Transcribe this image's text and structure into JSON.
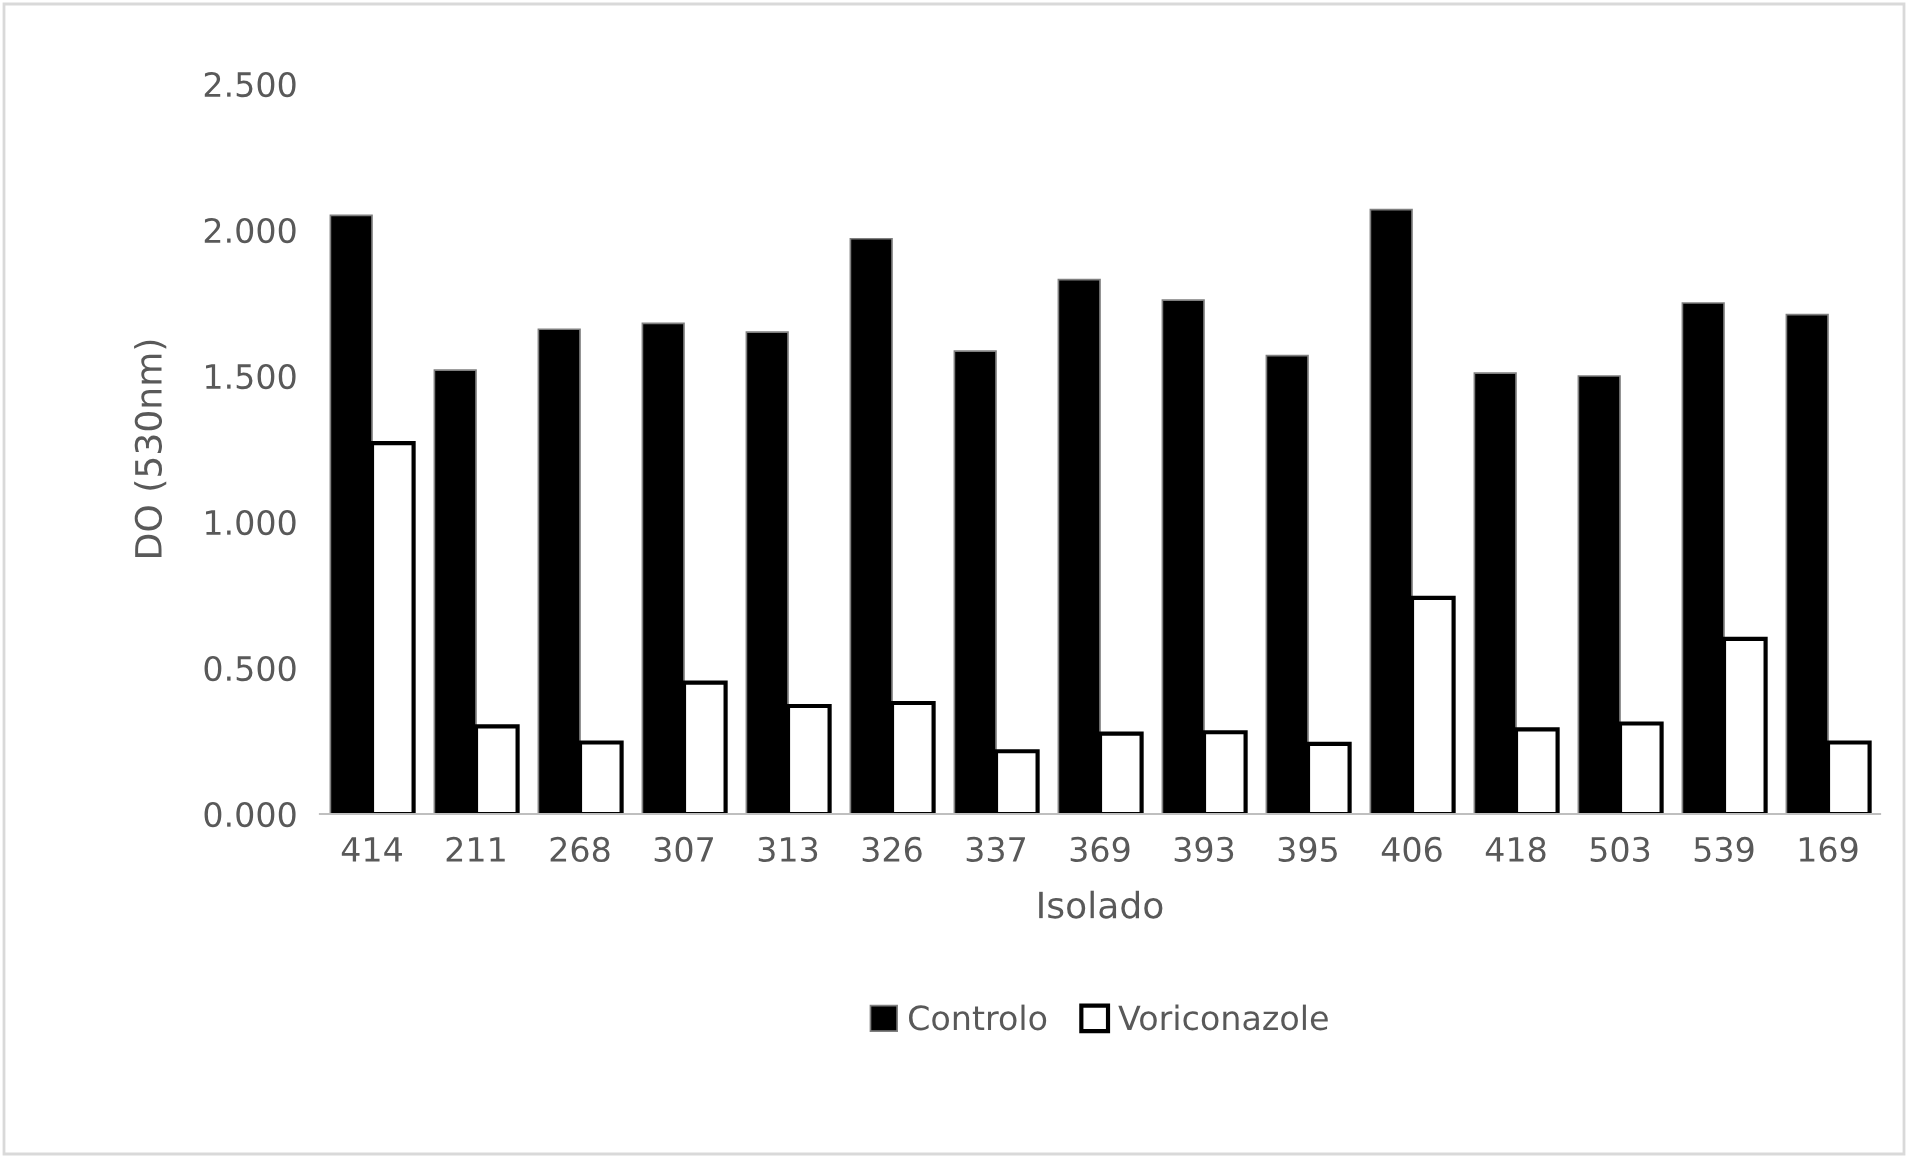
{
  "chart_data": {
    "type": "bar",
    "xlabel": "Isolado",
    "ylabel": "DO (530nm)",
    "categories": [
      "414",
      "211",
      "268",
      "307",
      "313",
      "326",
      "337",
      "369",
      "393",
      "395",
      "406",
      "418",
      "503",
      "539",
      "169"
    ],
    "series": [
      {
        "name": "Controlo",
        "color": "#000000",
        "values": [
          2.05,
          1.52,
          1.66,
          1.68,
          1.65,
          1.97,
          1.585,
          1.83,
          1.76,
          1.57,
          2.07,
          1.51,
          1.5,
          1.75,
          1.71
        ]
      },
      {
        "name": "Voriconazole",
        "color": "#ffffff",
        "values": [
          1.27,
          0.3,
          0.245,
          0.45,
          0.37,
          0.38,
          0.215,
          0.275,
          0.28,
          0.24,
          0.74,
          0.29,
          0.31,
          0.6,
          0.245
        ]
      }
    ],
    "ylim": [
      0,
      2.5
    ],
    "yticks": [
      {
        "value": 0,
        "label": "0.000"
      },
      {
        "value": 0.5,
        "label": "0.500"
      },
      {
        "value": 1,
        "label": "1.000"
      },
      {
        "value": 1.5,
        "label": "1.500"
      },
      {
        "value": 2,
        "label": "2.000"
      },
      {
        "value": 2.5,
        "label": "2.500"
      }
    ],
    "grid": false,
    "legend": "bottom"
  }
}
